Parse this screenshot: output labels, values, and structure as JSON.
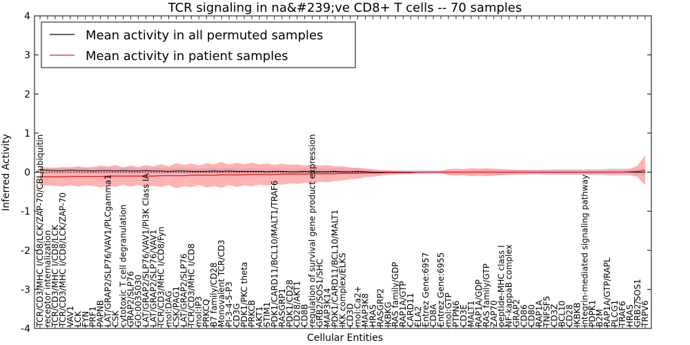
{
  "chart_data": {
    "type": "line",
    "title": "TCR signaling in na&#239;ve CD8+ T cells -- 70 samples",
    "xlabel": "Cellular Entities",
    "ylabel": "Inferred Activity",
    "ylim": [
      -4,
      4
    ],
    "yticks": [
      -4,
      -3,
      -2,
      -1,
      0,
      1,
      2,
      3,
      4
    ],
    "legend_position": "top-left",
    "colors": {
      "permuted_line": "#000000",
      "patient_line": "#e31a1c",
      "patient_band": "#ff8a8a",
      "permuted_band": "#9aa6d6"
    },
    "categories": [
      "TCR/CD3/MHC I/CD8/LCK/ZAP-70/CBL/ubiquitin",
      "receptor internalization",
      "TCR/CD3/MHC I/CD8/LCK",
      "TCR/CD3/MHC I/CD8/LCK/ZAP-70",
      "VAV1",
      "LCK",
      "FYN",
      "PRF1",
      "PAPNB",
      "LAT/GRAP2/SLP76/VAV1/PLCgamma1",
      "CSK",
      "cytotoxic T cell degranulation",
      "GRAP2/SLP76",
      "GO:0035030",
      "LAT/GRAP2/SLP76/VAV1/PI3K Class IA",
      "LAT/GRAP2/SLP76/VAV1",
      "TCR/CD3/MHC I/CD8/Fyn",
      "mol:DAG",
      "CSK/PAG1",
      "LAT/GRAP2/SLP76",
      "TCR/CD3/MHC I/CD8",
      "mol:IP3",
      "PRKCQ",
      "B7 family/CD28",
      "Monovalent TCR/CD3",
      "PI-3-4-5-P3",
      "CD3G",
      "PDK1/PKC theta",
      "PRKCB",
      "AKT1",
      "STIM1",
      "PDK1/CARD11/BCL10/MALT1/TRAF6",
      "RASGRP1",
      "PDK1/CD28",
      "CD28/AKT1",
      "CD8B",
      "regulation of survival gene product expression",
      "GRB2/SOS1/SHC",
      "MAP3K14",
      "PDK1/CARD11/BCL10/MALT1",
      "IKK complex/ELKS",
      "CD3D",
      "mol:Ca2+",
      "MAP3K8",
      "HRAS",
      "RASGRP2",
      "IKBKG",
      "RAS family/GDP",
      "RAP1A/GTP",
      "CARD11",
      "ELA2",
      "Entrez Gene:6957",
      "CD8A",
      "Entrez Gene:6955",
      "mol:GTP",
      "PTPN6",
      "CD3E",
      "MALT1",
      "RAP1A/GDP",
      "RAS family/GTP",
      "ZAP70",
      "peptide-MHC class I",
      "NF-kappaB complex",
      "GRAP2",
      "CD86",
      "CD80",
      "RAP1A",
      "TNFSF5",
      "CD3Z",
      "BCL10",
      "CD28",
      "IKBKB",
      "integrin-mediated signaling pathway",
      "PDPK1",
      "B2M",
      "RAP1A/GTP/RAPL",
      "PLCG1",
      "TRAF6",
      "HRAS_",
      "GRB2/SOS1",
      "TRPV6"
    ],
    "series": [
      {
        "name": "Mean activity in all permuted samples",
        "mean": [
          0.05,
          0.05,
          0.04,
          0.04,
          0.05,
          0.04,
          0.04,
          0.03,
          0.04,
          0.04,
          0.03,
          0.04,
          0.03,
          0.03,
          0.04,
          0.03,
          0.03,
          0.02,
          0.03,
          0.03,
          0.02,
          0.02,
          0.02,
          0.03,
          0.02,
          0.03,
          0.02,
          0.02,
          0.02,
          0.02,
          0.01,
          0.02,
          0.02,
          0.01,
          0.01,
          0.02,
          0.01,
          0.01,
          0.01,
          0.02,
          0.01,
          0.01,
          0.02,
          0.01,
          0.0,
          0.0,
          0.0,
          0.0,
          0.0,
          0.0,
          0.0,
          0.0,
          0.0,
          0.0,
          0.0,
          0.0,
          0.0,
          0.0,
          0.0,
          0.0,
          0.0,
          0.0,
          0.0,
          0.0,
          0.0,
          0.0,
          0.0,
          0.0,
          0.0,
          0.0,
          0.0,
          0.0,
          0.0,
          0.0,
          0.0,
          0.0,
          0.0,
          0.0,
          0.0,
          0.0,
          0.0
        ],
        "spread": [
          0.08,
          0.08,
          0.08,
          0.08,
          0.08,
          0.08,
          0.08,
          0.08,
          0.08,
          0.08,
          0.08,
          0.08,
          0.08,
          0.08,
          0.08,
          0.08,
          0.08,
          0.08,
          0.08,
          0.08,
          0.08,
          0.08,
          0.08,
          0.08,
          0.08,
          0.08,
          0.08,
          0.08,
          0.08,
          0.08,
          0.08,
          0.08,
          0.08,
          0.08,
          0.08,
          0.08,
          0.08,
          0.08,
          0.08,
          0.08,
          0.08,
          0.08,
          0.08,
          0.08,
          0.06,
          0.05,
          0.05,
          0.05,
          0.05,
          0.05,
          0.05,
          0.05,
          0.05,
          0.05,
          0.05,
          0.05,
          0.05,
          0.06,
          0.06,
          0.06,
          0.06,
          0.06,
          0.06,
          0.06,
          0.06,
          0.06,
          0.06,
          0.07,
          0.07,
          0.07,
          0.07,
          0.07,
          0.07,
          0.08,
          0.08,
          0.09,
          0.09,
          0.09,
          0.09,
          0.09,
          0.09
        ]
      },
      {
        "name": "Mean activity in patient samples",
        "mean": [
          -0.12,
          -0.12,
          -0.12,
          -0.12,
          -0.11,
          -0.11,
          -0.11,
          -0.11,
          -0.11,
          -0.1,
          -0.1,
          -0.1,
          -0.1,
          -0.1,
          -0.1,
          -0.1,
          -0.09,
          -0.09,
          -0.09,
          -0.09,
          -0.08,
          -0.08,
          -0.08,
          -0.08,
          -0.07,
          -0.07,
          -0.07,
          -0.07,
          -0.06,
          -0.06,
          -0.06,
          -0.06,
          -0.05,
          -0.05,
          -0.05,
          -0.05,
          -0.04,
          -0.04,
          -0.04,
          -0.04,
          -0.03,
          -0.03,
          -0.03,
          -0.02,
          -0.02,
          -0.02,
          -0.01,
          -0.01,
          -0.01,
          -0.01,
          0.0,
          0.0,
          0.0,
          0.0,
          0.0,
          0.0,
          0.0,
          0.0,
          0.0,
          0.0,
          0.0,
          0.0,
          0.0,
          0.0,
          0.0,
          0.0,
          0.0,
          0.0,
          0.0,
          0.0,
          0.0,
          0.0,
          0.0,
          0.0,
          0.0,
          0.0,
          0.0,
          0.0,
          0.01,
          0.02,
          0.05
        ],
        "spread": [
          0.22,
          0.22,
          0.23,
          0.25,
          0.22,
          0.26,
          0.23,
          0.24,
          0.28,
          0.24,
          0.28,
          0.22,
          0.27,
          0.23,
          0.28,
          0.25,
          0.29,
          0.24,
          0.32,
          0.27,
          0.3,
          0.25,
          0.31,
          0.28,
          0.33,
          0.26,
          0.31,
          0.27,
          0.3,
          0.26,
          0.28,
          0.25,
          0.27,
          0.24,
          0.25,
          0.22,
          0.24,
          0.21,
          0.22,
          0.19,
          0.18,
          0.15,
          0.14,
          0.11,
          0.1,
          0.07,
          0.06,
          0.05,
          0.04,
          0.03,
          0.02,
          0.02,
          0.02,
          0.03,
          0.08,
          0.09,
          0.08,
          0.1,
          0.09,
          0.1,
          0.09,
          0.08,
          0.07,
          0.06,
          0.06,
          0.05,
          0.05,
          0.05,
          0.05,
          0.05,
          0.05,
          0.05,
          0.05,
          0.05,
          0.05,
          0.05,
          0.06,
          0.06,
          0.07,
          0.15,
          0.38
        ]
      }
    ]
  }
}
